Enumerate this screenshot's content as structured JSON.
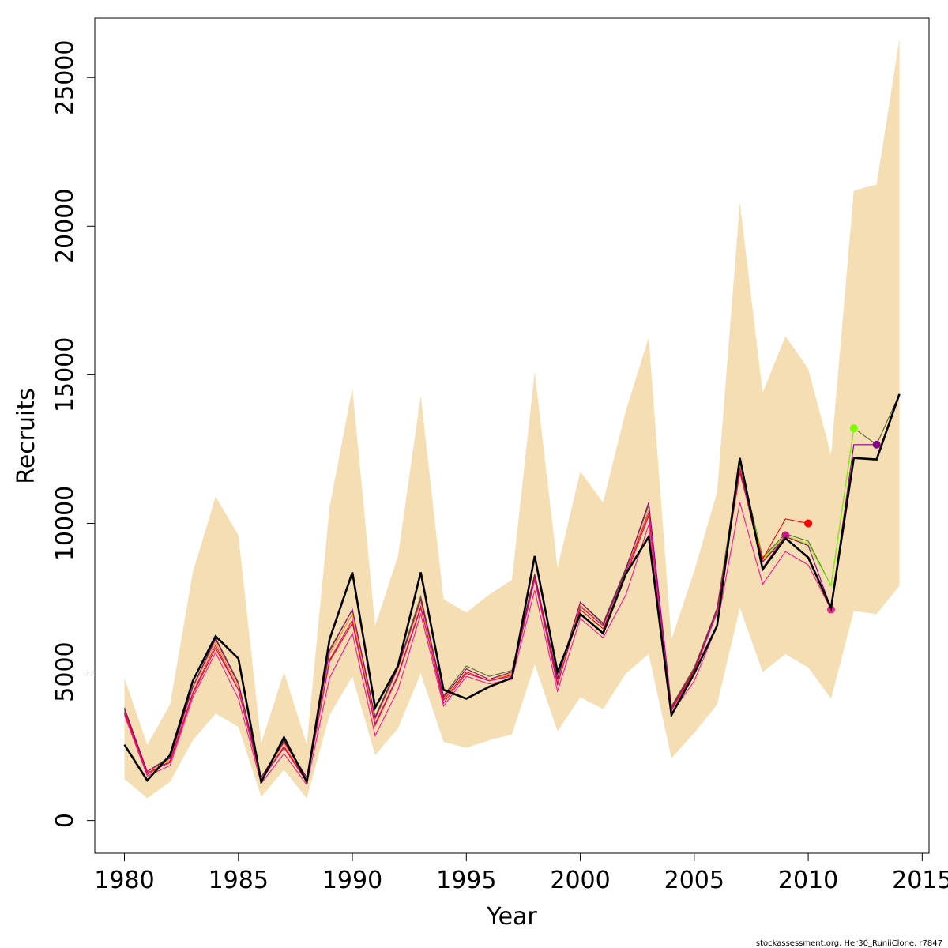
{
  "chart_data": {
    "type": "line",
    "xlabel": "Year",
    "ylabel": "Recruits",
    "xlim": [
      1978.7,
      2015.3
    ],
    "ylim": [
      -1100,
      27000
    ],
    "x_ticks": [
      1980,
      1985,
      1990,
      1995,
      2000,
      2005,
      2010,
      2015
    ],
    "y_ticks": [
      0,
      5000,
      10000,
      15000,
      20000,
      25000
    ],
    "x_tick_labels": [
      "1980",
      "1985",
      "1990",
      "1995",
      "2000",
      "2005",
      "2010",
      "2015"
    ],
    "y_tick_labels": [
      "0",
      "5000",
      "10000",
      "15000",
      "20000",
      "25000"
    ],
    "grid": false,
    "legend": "none",
    "band": {
      "color": "#f5deb3",
      "x": [
        1980,
        1981,
        1982,
        1983,
        1984,
        1985,
        1986,
        1987,
        1988,
        1989,
        1990,
        1991,
        1992,
        1993,
        1994,
        1995,
        1996,
        1997,
        1998,
        1999,
        2000,
        2001,
        2002,
        2003,
        2004,
        2005,
        2006,
        2007,
        2008,
        2009,
        2010,
        2011,
        2012,
        2013,
        2014
      ],
      "upper": [
        4800,
        2550,
        3900,
        8350,
        10900,
        9600,
        2600,
        5000,
        2550,
        10550,
        14550,
        6550,
        8900,
        14300,
        7450,
        7000,
        7600,
        8100,
        15100,
        8500,
        11750,
        10700,
        13800,
        16250,
        6100,
        8400,
        11050,
        20800,
        14400,
        16300,
        15200,
        12300,
        21200,
        21400,
        26300
      ],
      "lower": [
        1400,
        750,
        1300,
        2700,
        3600,
        3150,
        800,
        1700,
        750,
        3550,
        4850,
        2200,
        3100,
        4950,
        2650,
        2450,
        2700,
        2900,
        5250,
        3000,
        4150,
        3750,
        4950,
        5600,
        2100,
        2950,
        3900,
        7150,
        5000,
        5600,
        5150,
        4100,
        7050,
        6950,
        7900
      ]
    },
    "series": [
      {
        "color": "#000000",
        "width": 2.6,
        "x": [
          1980,
          1981,
          1982,
          1983,
          1984,
          1985,
          1986,
          1987,
          1988,
          1989,
          1990,
          1991,
          1992,
          1993,
          1994,
          1995,
          1996,
          1997,
          1998,
          1999,
          2000,
          2001,
          2002,
          2003,
          2004,
          2005,
          2006,
          2007,
          2008,
          2009,
          2010,
          2011,
          2012,
          2013,
          2014
        ],
        "values": [
          2550,
          1350,
          2200,
          4700,
          6200,
          5450,
          1300,
          2800,
          1300,
          6100,
          8350,
          3800,
          5200,
          8350,
          4400,
          4100,
          4500,
          4800,
          8900,
          5000,
          6950,
          6300,
          8300,
          9550,
          3550,
          4950,
          6550,
          12200,
          8450,
          9500,
          8850,
          7150,
          12200,
          12150,
          14350
        ],
        "point": false
      },
      {
        "color": "#556b2f",
        "width": 1.1,
        "x": [
          1980,
          1981,
          1982,
          1983,
          1984,
          1985,
          1986,
          1987,
          1988,
          1989,
          1990,
          1991,
          1992,
          1993,
          1994,
          1995,
          1996,
          1997,
          1998,
          1999,
          2000,
          2001,
          2002,
          2003,
          2004,
          2005,
          2006,
          2007,
          2008,
          2009,
          2010,
          2011,
          2012,
          2013,
          2014
        ],
        "values": [
          3800,
          1650,
          2150,
          4500,
          6150,
          4650,
          1450,
          2700,
          1450,
          5750,
          7100,
          3500,
          5200,
          7550,
          4200,
          5200,
          4850,
          5050,
          8300,
          4800,
          7350,
          6650,
          8500,
          10600,
          3850,
          5150,
          7150,
          12100,
          8850,
          9650,
          9400,
          7900,
          13200,
          12650,
          14350
        ],
        "point": false
      },
      {
        "color": "#ff8c00",
        "width": 1.1,
        "x": [
          1980,
          1981,
          1982,
          1983,
          1984,
          1985,
          1986,
          1987,
          1988,
          1989,
          1990,
          1991,
          1992,
          1993,
          1994,
          1995,
          1996,
          1997,
          1998,
          1999,
          2000,
          2001,
          2002,
          2003,
          2004,
          2005,
          2006,
          2007,
          2008,
          2009,
          2010
        ],
        "values": [
          3700,
          1600,
          2050,
          4450,
          6000,
          4500,
          1400,
          2600,
          1400,
          5600,
          6950,
          3400,
          5100,
          7350,
          4100,
          5100,
          4750,
          4950,
          8200,
          4700,
          7250,
          6550,
          8400,
          10450,
          3800,
          5100,
          7100,
          11950,
          8750,
          9550,
          9300
        ],
        "point": false
      },
      {
        "color": "#7cfc00",
        "width": 1.1,
        "x": [
          2007,
          2008,
          2009,
          2010,
          2011,
          2012
        ],
        "values": [
          12000,
          8800,
          9600,
          9300,
          7900,
          13200
        ],
        "point": true
      },
      {
        "color": "#8b008b",
        "width": 1.1,
        "x": [
          1980,
          1981,
          1982,
          1983,
          1984,
          1985,
          1986,
          1987,
          1988,
          1989,
          1990,
          1991,
          1992,
          1993,
          1994,
          1995,
          1996,
          1997,
          1998,
          1999,
          2000,
          2001,
          2002,
          2003,
          2004,
          2005,
          2006,
          2007,
          2008,
          2009,
          2010,
          2011,
          2012,
          2013
        ],
        "values": [
          3750,
          1650,
          2100,
          4500,
          6100,
          4600,
          1450,
          2650,
          1450,
          5700,
          7100,
          3450,
          5150,
          7450,
          4150,
          5100,
          4750,
          5000,
          8250,
          4750,
          7350,
          6600,
          8450,
          10700,
          3800,
          5100,
          7100,
          11850,
          8700,
          9550,
          9250,
          7150,
          12650,
          12650
        ],
        "point": true
      },
      {
        "color": "#ff0000",
        "width": 1.1,
        "x": [
          1980,
          1981,
          1982,
          1983,
          1984,
          1985,
          1986,
          1987,
          1988,
          1989,
          1990,
          1991,
          1992,
          1993,
          1994,
          1995,
          1996,
          1997,
          1998,
          1999,
          2000,
          2001,
          2002,
          2003,
          2004,
          2005,
          2006,
          2007,
          2008,
          2009,
          2010
        ],
        "values": [
          3650,
          1600,
          1950,
          4250,
          5800,
          4400,
          1350,
          2450,
          1300,
          5350,
          6650,
          3200,
          4850,
          7150,
          4050,
          5000,
          4700,
          4900,
          8150,
          4600,
          7100,
          6450,
          8250,
          10250,
          3750,
          5050,
          7000,
          11700,
          8800,
          10150,
          10000
        ],
        "point": true
      },
      {
        "color": "#c71585",
        "width": 1.1,
        "x": [
          1980,
          1981,
          1982,
          1983,
          1984,
          1985,
          1986,
          1987,
          1988,
          1989,
          1990,
          1991,
          1992,
          1993,
          1994,
          1995,
          1996,
          1997,
          1998,
          1999,
          2000,
          2001,
          2002,
          2003,
          2004,
          2005,
          2006,
          2007,
          2008,
          2009
        ],
        "values": [
          3600,
          1550,
          2000,
          4300,
          5900,
          4400,
          1350,
          2500,
          1350,
          5400,
          6750,
          3250,
          4900,
          7200,
          3950,
          4950,
          4700,
          4850,
          8100,
          4550,
          7200,
          6550,
          8350,
          10350,
          3700,
          5000,
          7000,
          11800,
          8500,
          9600
        ],
        "point": true
      },
      {
        "color": "#ff1493",
        "width": 1.1,
        "x": [
          1980,
          1981,
          1982,
          1983,
          1984,
          1985,
          1986,
          1987,
          1988,
          1989,
          1990,
          1991,
          1992,
          1993,
          1994,
          1995,
          1996,
          1997,
          1998,
          1999,
          2000,
          2001,
          2002,
          2003,
          2004,
          2005,
          2006,
          2007,
          2008,
          2009,
          2010,
          2011
        ],
        "values": [
          3550,
          1500,
          1850,
          4150,
          5650,
          4100,
          1250,
          2250,
          1200,
          4800,
          6300,
          2850,
          4400,
          6950,
          3850,
          4850,
          4600,
          4750,
          7750,
          4350,
          6800,
          6150,
          7600,
          9950,
          3600,
          4700,
          6550,
          10700,
          7950,
          9050,
          8600,
          7100
        ],
        "point": true
      }
    ],
    "caption": "stockassessment.org, Her30_RuniiClone, r7847"
  }
}
